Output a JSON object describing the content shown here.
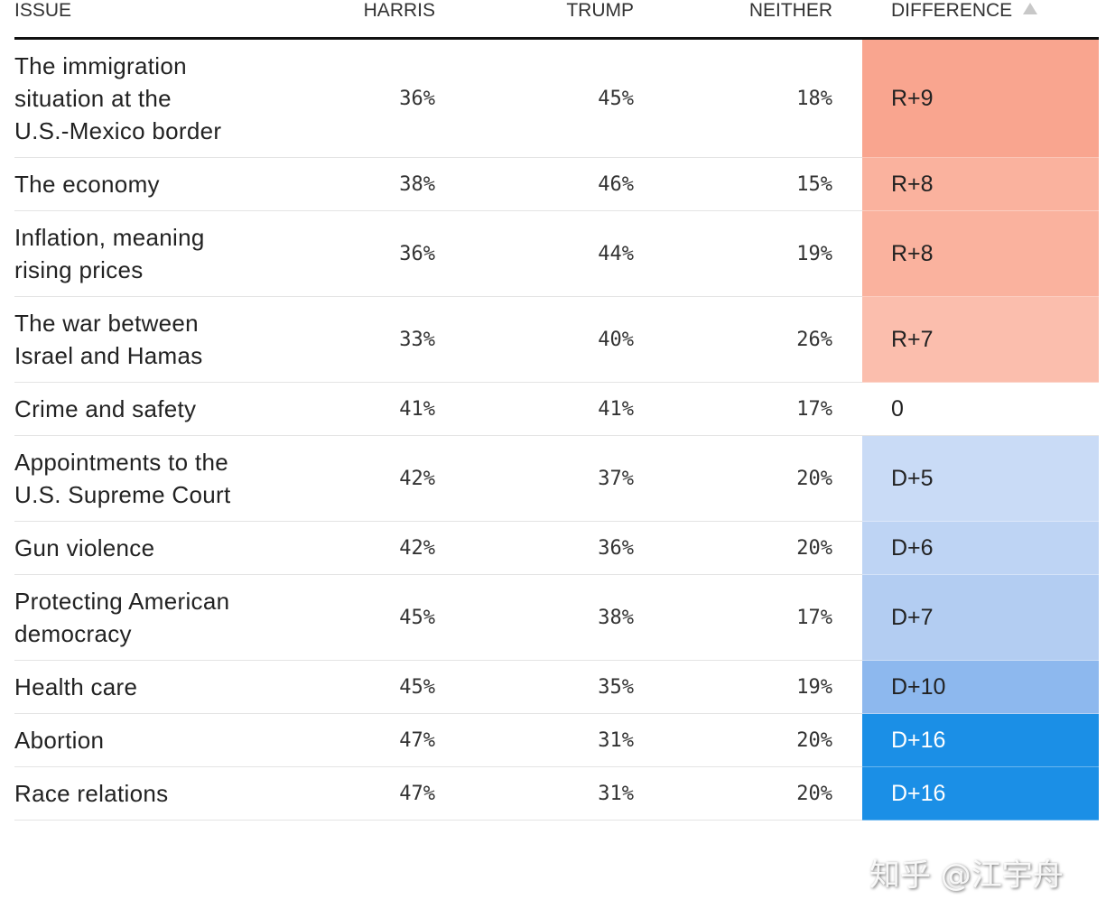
{
  "table": {
    "headers": [
      "ISSUE",
      "HARRIS",
      "TRUMP",
      "NEITHER",
      "DIFFERENCE"
    ],
    "rows": [
      {
        "issue": "The immigration situation at the U.S.-Mexico border",
        "harris": "36%",
        "trump": "45%",
        "neither": "18%",
        "difference": "R+9",
        "color": "#f9a58f"
      },
      {
        "issue": "The economy",
        "harris": "38%",
        "trump": "46%",
        "neither": "15%",
        "difference": "R+8",
        "color": "#fab29e"
      },
      {
        "issue": "Inflation, meaning rising prices",
        "harris": "36%",
        "trump": "44%",
        "neither": "19%",
        "difference": "R+8",
        "color": "#fab29e"
      },
      {
        "issue": "The war between Israel and Hamas",
        "harris": "33%",
        "trump": "40%",
        "neither": "26%",
        "difference": "R+7",
        "color": "#fbbead"
      },
      {
        "issue": "Crime and safety",
        "harris": "41%",
        "trump": "41%",
        "neither": "17%",
        "difference": "0",
        "color": "#ffffff"
      },
      {
        "issue": "Appointments to the U.S. Supreme Court",
        "harris": "42%",
        "trump": "37%",
        "neither": "20%",
        "difference": "D+5",
        "color": "#c9dbf6"
      },
      {
        "issue": "Gun violence",
        "harris": "42%",
        "trump": "36%",
        "neither": "20%",
        "difference": "D+6",
        "color": "#bed4f4"
      },
      {
        "issue": "Protecting American democracy",
        "harris": "45%",
        "trump": "38%",
        "neither": "17%",
        "difference": "D+7",
        "color": "#b3cdf2"
      },
      {
        "issue": "Health care",
        "harris": "45%",
        "trump": "35%",
        "neither": "19%",
        "difference": "D+10",
        "color": "#8db8ee"
      },
      {
        "issue": "Abortion",
        "harris": "47%",
        "trump": "31%",
        "neither": "20%",
        "difference": "D+16",
        "color": "#1b8fe6"
      },
      {
        "issue": "Race relations",
        "harris": "47%",
        "trump": "31%",
        "neither": "20%",
        "difference": "D+16",
        "color": "#1b8fe6"
      }
    ]
  },
  "watermark": "知乎 @江宇舟"
}
